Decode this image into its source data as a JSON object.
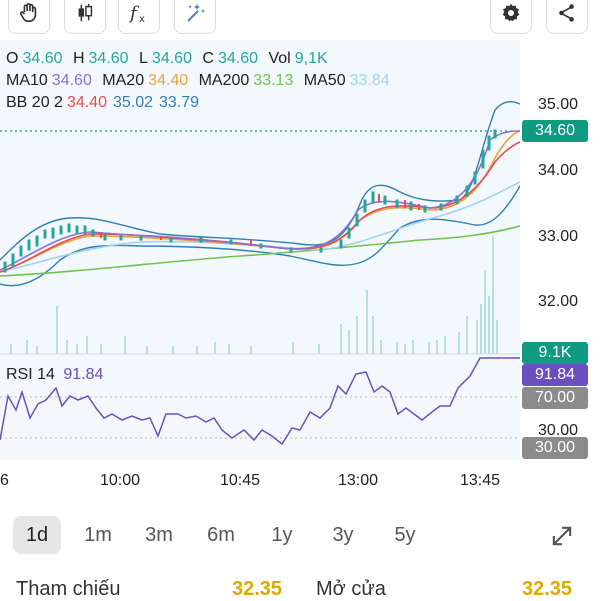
{
  "toolbar": {
    "icons": [
      "hand-icon",
      "candlestick-icon",
      "function-icon",
      "magic-icon",
      "gear-icon",
      "share-icon"
    ]
  },
  "legend": {
    "ohlc": {
      "o_label": "O",
      "o": "34.60",
      "h_label": "H",
      "h": "34.60",
      "l_label": "L",
      "l": "34.60",
      "c_label": "C",
      "c": "34.60",
      "vol_label": "Vol",
      "vol": "9,1K"
    },
    "ma": {
      "ma10_label": "MA10",
      "ma10": "34.60",
      "ma20_label": "MA20",
      "ma20": "34.40",
      "ma200_label": "MA200",
      "ma200": "33.13",
      "ma50_label": "MA50",
      "ma50": "33.84"
    },
    "bb": {
      "label": "BB 20 2",
      "v1": "34.40",
      "v2": "35.02",
      "v3": "33.79"
    }
  },
  "colors": {
    "up": "#25a69a",
    "ma10": "#8e6fd0",
    "ma20": "#e8a33c",
    "ma200": "#6fc34a",
    "ma50": "#9fd3ee",
    "bb_lower": "#e84b4b",
    "bb_mid": "#2f7fb5",
    "price_badge": "#0f9a82",
    "rsi": "#6a4fc0",
    "gray_badge": "#8b8b8b"
  },
  "price_axis": {
    "ticks": [
      "35.00",
      "34.00",
      "33.00",
      "32.00"
    ],
    "current_price": "34.60",
    "volume_badge": "9.1K"
  },
  "rsi": {
    "label": "RSI 14",
    "value": "91.84",
    "badge": "91.84",
    "level_70": "70.00",
    "level_30": "30.00",
    "axis_30": "30.00"
  },
  "time_axis": {
    "left_cut": "6",
    "ticks": [
      "10:00",
      "10:45",
      "13:00",
      "13:45"
    ]
  },
  "timeframes": [
    "1d",
    "1m",
    "3m",
    "6m",
    "1y",
    "3y",
    "5y"
  ],
  "active_timeframe": "1d",
  "expand_icon": "expand-icon",
  "info": {
    "reference_label": "Tham chiếu",
    "reference_value": "32.35",
    "open_label": "Mở cửa",
    "open_value": "32.35"
  }
}
